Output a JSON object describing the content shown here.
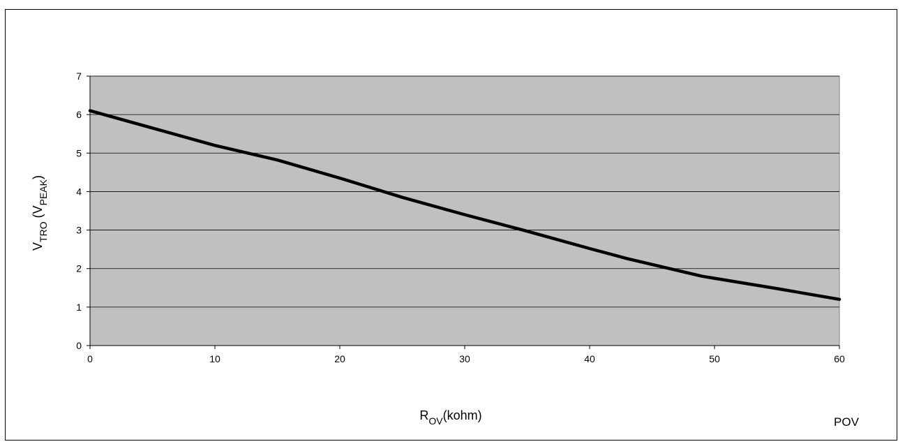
{
  "chart_data": {
    "type": "line",
    "xlabel": {
      "main": "R",
      "sub": "OV",
      "suffix": "(kohm)"
    },
    "ylabel": {
      "main": "V",
      "sub": "TRO",
      "middle": " (V",
      "sub2": "PEAK",
      "suffix": ")"
    },
    "xlim": [
      0,
      60
    ],
    "ylim": [
      0,
      7
    ],
    "xticks": [
      0,
      10,
      20,
      30,
      40,
      50,
      60
    ],
    "yticks": [
      0,
      1,
      2,
      3,
      4,
      5,
      6,
      7
    ],
    "grid": "horizontal",
    "plot_background": "#c0c0c0",
    "line_color": "#000000",
    "series": [
      {
        "x": [
          0,
          5,
          10,
          15,
          20,
          25,
          30,
          35,
          40,
          43,
          49,
          55,
          60
        ],
        "y": [
          6.1,
          5.65,
          5.2,
          4.82,
          4.35,
          3.85,
          3.4,
          2.97,
          2.52,
          2.26,
          1.8,
          1.48,
          1.2
        ]
      }
    ],
    "annotation": "POV"
  }
}
